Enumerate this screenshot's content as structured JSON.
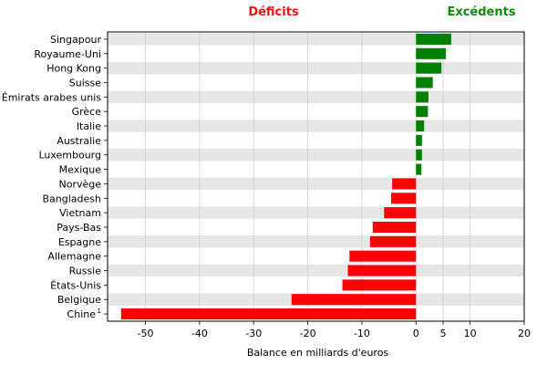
{
  "chart_data": {
    "type": "bar",
    "orientation": "horizontal",
    "xlabel": "Balance en milliards d'euros",
    "xlim": [
      -57,
      20
    ],
    "xticks": [
      -50,
      -40,
      -30,
      -20,
      -10,
      0,
      5,
      10,
      20
    ],
    "header_left": "Déficits",
    "header_right": "Excédents",
    "header_left_color": "#ee1111",
    "header_right_color": "#118811",
    "positive_color": "#008000",
    "negative_color": "#ff0000",
    "grid": "vertical",
    "row_shading": true,
    "categories": [
      "Singapour",
      "Royaume-Uni",
      "Hong Kong",
      "Suisse",
      "Émirats arabes unis",
      "Grèce",
      "Italie",
      "Australie",
      "Luxembourg",
      "Mexique",
      "Norvège",
      "Bangladesh",
      "Vietnam",
      "Pays-Bas",
      "Espagne",
      "Allemagne",
      "Russie",
      "États-Unis",
      "Belgique",
      "Chine"
    ],
    "footnote_marks": {
      "Chine": "1"
    },
    "values": [
      6.5,
      5.5,
      4.7,
      3.1,
      2.3,
      2.2,
      1.5,
      1.1,
      1.1,
      1.0,
      -4.4,
      -4.6,
      -5.9,
      -8.0,
      -8.5,
      -12.3,
      -12.6,
      -13.6,
      -23.0,
      -54.5
    ]
  }
}
